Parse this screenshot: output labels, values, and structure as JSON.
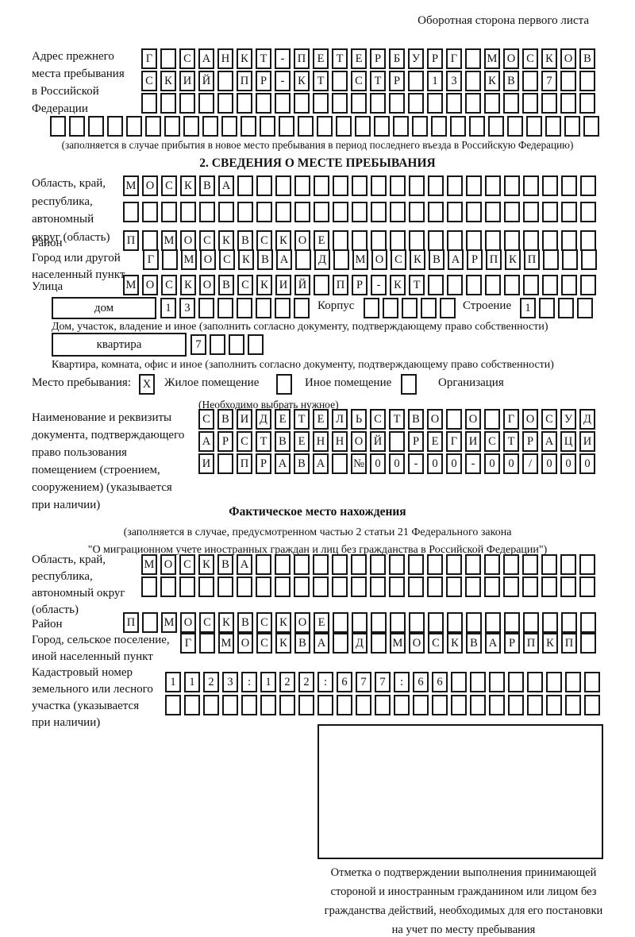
{
  "page": {
    "top_right_note": "Оборотная сторона первого листа"
  },
  "prev_address": {
    "label": "Адрес прежнего\nместа пребывания\nв Российской\nФедерации",
    "rows": [
      {
        "cells": "Г САНКТ-ПЕТЕРБУРГ МОСКОВ",
        "count": 24
      },
      {
        "cells": "СКИЙ ПР-КТ СТР 13 КВ 7",
        "count": 24
      },
      {
        "cells": "",
        "count": 24
      },
      {
        "cells": "",
        "count": 29
      }
    ],
    "note": "(заполняется в случае прибытия в новое место пребывания в период последнего въезда в Российскую Федерацию)"
  },
  "section2": {
    "title": "2. СВЕДЕНИЯ О МЕСТЕ ПРЕБЫВАНИЯ",
    "region": {
      "label": "Область, край,\nреспублика,\nавтономный\nокруг (область)",
      "rows": [
        {
          "cells": "МОСКВА",
          "count": 25
        },
        {
          "cells": "",
          "count": 25
        }
      ]
    },
    "district": {
      "label": "Район",
      "row": {
        "cells": "П МОСКВСКОЕ",
        "count": 25
      }
    },
    "city": {
      "label": "Город или другой\nнаселенный пункт",
      "row": {
        "cells": "Г МОСКВА Д МОСКВАРПКП",
        "count": 24
      }
    },
    "street": {
      "label": "Улица",
      "row": {
        "cells": "МОСКОВСКИЙ ПР-КТ",
        "count": 25
      }
    },
    "house_row": {
      "house_label": "дом",
      "house_cells": {
        "cells": "13",
        "count": 8
      },
      "korpus_label": "Корпус",
      "korpus_cells": {
        "cells": "",
        "count": 5
      },
      "stroenie_label": "Строение",
      "stroenie_cells": {
        "cells": "1",
        "count": 4
      }
    },
    "house_note": "Дом, участок, владение и иное (заполнить согласно документу, подтверждающему право собственности)",
    "apartment_row": {
      "label": "квартира",
      "cells": {
        "cells": "7",
        "count": 4
      }
    },
    "apartment_note": "Квартира, комната, офис и иное (заполнить согласно документу, подтверждающему право собственности)",
    "stay_type": {
      "label": "Место пребывания:",
      "options": [
        {
          "label": "Жилое помещение",
          "mark": "X"
        },
        {
          "label": "Иное помещение",
          "mark": ""
        },
        {
          "label": "Организация",
          "mark": ""
        }
      ],
      "note": "(Необходимо выбрать нужное)"
    },
    "document": {
      "label": "Наименование и реквизиты\nдокумента, подтверждающего\nправо пользования\nпомещением (строением,\nсооружением) (указывается\nпри наличии)",
      "rows": [
        {
          "cells": "СВИДЕТЕЛЬСТВО О ГОСУД",
          "count": 21
        },
        {
          "cells": "АРСТВЕННОЙ РЕГИСТРАЦИ",
          "count": 21
        },
        {
          "cells": "И ПРАВА №00-00-00/000",
          "count": 21
        }
      ]
    }
  },
  "actual_location": {
    "title": "Фактическое место нахождения",
    "note": "(заполняется в случае, предусмотренном частью 2 статьи 21 Федерального закона\n\"О миграционном учете иностранных граждан и лиц без гражданства в Российской Федерации\")",
    "region": {
      "label": "Область, край,\nреспублика,\nавтономный округ\n(область)",
      "rows": [
        {
          "cells": "МОСКВА",
          "count": 24
        },
        {
          "cells": "",
          "count": 24
        }
      ]
    },
    "district": {
      "label": "Район",
      "row": {
        "cells": "П МОСКВСКОЕ",
        "count": 25
      }
    },
    "city": {
      "label": "Город, сельское поселение,\nиной населенный пункт",
      "row": {
        "cells": "Г МОСКВА Д МОСКВАРПКП",
        "count": 22
      }
    },
    "cadastral": {
      "label": "Кадастровый номер\nземельного или лесного\nучастка (указывается\nпри наличии)",
      "rows": [
        {
          "cells": "1123:122:677:66",
          "count": 23
        },
        {
          "cells": "",
          "count": 23
        }
      ]
    }
  },
  "stamp": {
    "caption": "Отметка о подтверждении выполнения принимающей\nстороной и иностранным гражданином или лицом без\nгражданства действий, необходимых для его постановки\nна учет по месту пребывания"
  }
}
